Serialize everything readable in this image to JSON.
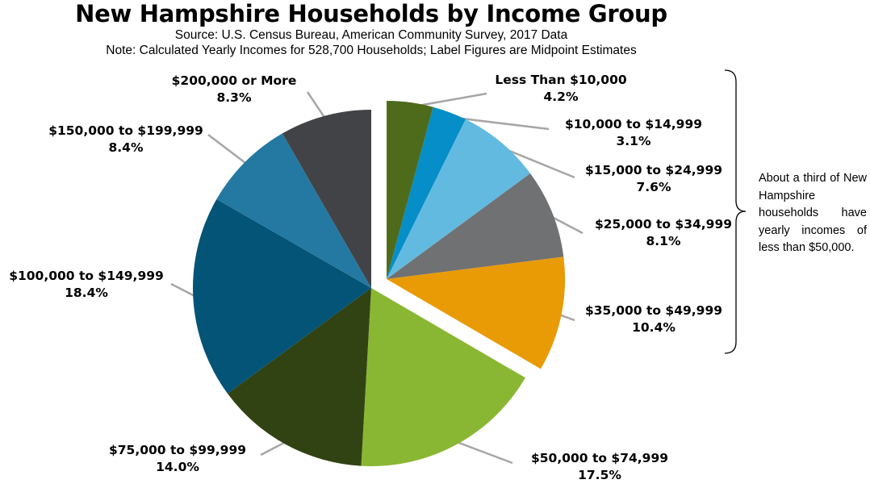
{
  "chart_data": {
    "type": "pie",
    "title": "New Hampshire Households by Income Group",
    "subtitle": [
      "Source: U.S. Census Bureau, American Community Survey, 2017 Data",
      "Note: Calculated Yearly Incomes for 528,700 Households; Label Figures are Midpoint Estimates"
    ],
    "slices": [
      {
        "label": "Less Than $10,000",
        "value": 4.2,
        "value_label": "4.2%",
        "color": "#4e6b1c"
      },
      {
        "label": "$10,000 to $14,999",
        "value": 3.1,
        "value_label": "3.1%",
        "color": "#058ec7"
      },
      {
        "label": "$15,000 to $24,999",
        "value": 7.6,
        "value_label": "7.6%",
        "color": "#63bae0"
      },
      {
        "label": "$25,000 to $34,999",
        "value": 8.1,
        "value_label": "8.1%",
        "color": "#707173"
      },
      {
        "label": "$35,000 to $49,999",
        "value": 10.4,
        "value_label": "10.4%",
        "color": "#e89b05"
      },
      {
        "label": "$50,000 to $74,999",
        "value": 17.5,
        "value_label": "17.5%",
        "color": "#8ab733"
      },
      {
        "label": "$75,000 to $99,999",
        "value": 14.0,
        "value_label": "14.0%",
        "color": "#314313"
      },
      {
        "label": "$100,000 to $149,999",
        "value": 18.4,
        "value_label": "18.4%",
        "color": "#045477"
      },
      {
        "label": "$150,000 to $199,999",
        "value": 8.4,
        "value_label": "8.4%",
        "color": "#2479a2"
      },
      {
        "label": "$200,000 or More",
        "value": 8.3,
        "value_label": "8.3%",
        "color": "#424346"
      }
    ],
    "exploded_slices": [
      "Less Than $10,000",
      "$10,000 to $14,999",
      "$15,000 to $24,999",
      "$25,000 to $34,999",
      "$35,000 to $49,999"
    ],
    "annotation": "About a third of New Hampshire households have yearly incomes of less than $50,000."
  }
}
